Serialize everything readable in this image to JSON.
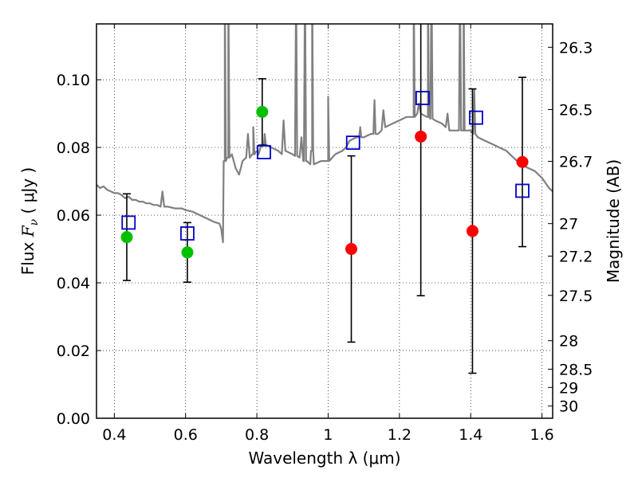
{
  "chart_data": {
    "type": "scatter",
    "xlabel": "Wavelength  λ (μm)",
    "ylabel": {
      "prefix": "Flux  ",
      "sym": "F",
      "sub": "ν",
      "unit": "  ( μJy )"
    },
    "y2label": "Magnitude (AB)",
    "xlim": [
      0.35,
      1.63
    ],
    "ylim": [
      0.0,
      0.1165
    ],
    "x_ticks": [
      0.4,
      0.6,
      0.8,
      1.0,
      1.2,
      1.4,
      1.6
    ],
    "x_tick_labels": [
      "0.4",
      "0.6",
      "0.8",
      "1",
      "1.2",
      "1.4",
      "1.6"
    ],
    "y_ticks": [
      0.0,
      0.02,
      0.04,
      0.06,
      0.08,
      0.1
    ],
    "y_tick_labels": [
      "0.00",
      "0.02",
      "0.04",
      "0.06",
      "0.08",
      "0.10"
    ],
    "y2_ticks": [
      {
        "label": "26.3",
        "flux": 0.1096
      },
      {
        "label": "26.5",
        "flux": 0.0912
      },
      {
        "label": "26.7",
        "flux": 0.0759
      },
      {
        "label": "27",
        "flux": 0.0575
      },
      {
        "label": "27.2",
        "flux": 0.0479
      },
      {
        "label": "27.5",
        "flux": 0.0363
      },
      {
        "label": "28",
        "flux": 0.0229
      },
      {
        "label": "28.5",
        "flux": 0.0145
      },
      {
        "label": "29",
        "flux": 0.0091
      },
      {
        "label": "30",
        "flux": 0.0036
      }
    ],
    "grid": true,
    "grid_style": "dotted",
    "colors": {
      "model": "#808080",
      "green": "#00c000",
      "red": "#ff0000",
      "square": "#0000c8",
      "errorbar": "#000000"
    },
    "series": [
      {
        "kind": "model-spectrum",
        "x": [
          0.35,
          0.36,
          0.37,
          0.38,
          0.39,
          0.4,
          0.41,
          0.42,
          0.43,
          0.44,
          0.45,
          0.46,
          0.47,
          0.48,
          0.49,
          0.5,
          0.51,
          0.52,
          0.53,
          0.535,
          0.54,
          0.55,
          0.57,
          0.59,
          0.6,
          0.62,
          0.64,
          0.66,
          0.68,
          0.695,
          0.7,
          0.705,
          0.71,
          0.72,
          0.73,
          0.74,
          0.75,
          0.76,
          0.77,
          0.775,
          0.78,
          0.79,
          0.8,
          0.805,
          0.81,
          0.82,
          0.84,
          0.86,
          0.87,
          0.875,
          0.88,
          0.9,
          0.92,
          0.925,
          0.93,
          0.94,
          0.95,
          0.955,
          0.96,
          0.98,
          1.0,
          1.02,
          1.04,
          1.05,
          1.06,
          1.08,
          1.1,
          1.12,
          1.14,
          1.15,
          1.155,
          1.16,
          1.18,
          1.2,
          1.22,
          1.24,
          1.25,
          1.255,
          1.26,
          1.28,
          1.3,
          1.32,
          1.33,
          1.335,
          1.34,
          1.36,
          1.38,
          1.4,
          1.42,
          1.44,
          1.46,
          1.48,
          1.5,
          1.52,
          1.54,
          1.56,
          1.58,
          1.6,
          1.62,
          1.63
        ],
        "y": [
          0.069,
          0.068,
          0.0685,
          0.0675,
          0.067,
          0.0665,
          0.0665,
          0.066,
          0.065,
          0.0655,
          0.0645,
          0.0645,
          0.064,
          0.064,
          0.0635,
          0.0635,
          0.063,
          0.063,
          0.0625,
          0.067,
          0.0625,
          0.0625,
          0.062,
          0.062,
          0.0615,
          0.061,
          0.06,
          0.059,
          0.058,
          0.0575,
          0.056,
          0.052,
          0.076,
          0.077,
          0.078,
          0.074,
          0.072,
          0.076,
          0.077,
          0.084,
          0.077,
          0.078,
          0.079,
          0.078,
          0.08,
          0.081,
          0.08,
          0.079,
          0.078,
          0.088,
          0.079,
          0.078,
          0.077,
          0.083,
          0.076,
          0.076,
          0.075,
          0.079,
          0.075,
          0.076,
          0.076,
          0.078,
          0.079,
          0.08,
          0.082,
          0.083,
          0.083,
          0.084,
          0.084,
          0.085,
          0.091,
          0.086,
          0.087,
          0.088,
          0.089,
          0.089,
          0.09,
          0.093,
          0.09,
          0.089,
          0.088,
          0.087,
          0.086,
          0.09,
          0.085,
          0.085,
          0.085,
          0.085,
          0.083,
          0.082,
          0.081,
          0.08,
          0.079,
          0.077,
          0.075,
          0.074,
          0.073,
          0.071,
          0.068,
          0.067
        ],
        "emission_lines": [
          {
            "x": 0.71,
            "peak": 0.13
          },
          {
            "x": 0.72,
            "peak": 0.13
          },
          {
            "x": 0.79,
            "peak": 0.086
          },
          {
            "x": 0.822,
            "peak": 0.084
          },
          {
            "x": 0.91,
            "peak": 0.13
          },
          {
            "x": 0.935,
            "peak": 0.13
          },
          {
            "x": 0.955,
            "peak": 0.13
          },
          {
            "x": 1.0,
            "peak": 0.095
          },
          {
            "x": 1.09,
            "peak": 0.086
          },
          {
            "x": 1.13,
            "peak": 0.094
          },
          {
            "x": 1.24,
            "peak": 0.13
          },
          {
            "x": 1.28,
            "peak": 0.13
          },
          {
            "x": 1.29,
            "peak": 0.13
          },
          {
            "x": 1.37,
            "peak": 0.13
          },
          {
            "x": 1.38,
            "peak": 0.13
          },
          {
            "x": 1.41,
            "peak": 0.097
          }
        ]
      },
      {
        "kind": "observed-green",
        "x": [
          0.435,
          0.605,
          0.815
        ],
        "y": [
          0.0535,
          0.049,
          0.0905
        ],
        "yerr": [
          0.0128,
          0.0088,
          0.0098
        ]
      },
      {
        "kind": "observed-red",
        "x": [
          1.065,
          1.26,
          1.405,
          1.545
        ],
        "y": [
          0.05,
          0.0832,
          0.0553,
          0.0757
        ],
        "yerr_low": [
          0.0275,
          0.047,
          0.042,
          0.025
        ],
        "yerr_high": [
          0.0275,
          0.047,
          0.042,
          0.025
        ]
      },
      {
        "kind": "model-squares",
        "x": [
          0.44,
          0.605,
          0.82,
          1.07,
          1.265,
          1.415,
          1.545
        ],
        "y": [
          0.0578,
          0.0546,
          0.0786,
          0.0814,
          0.0946,
          0.0888,
          0.0672
        ]
      }
    ]
  }
}
